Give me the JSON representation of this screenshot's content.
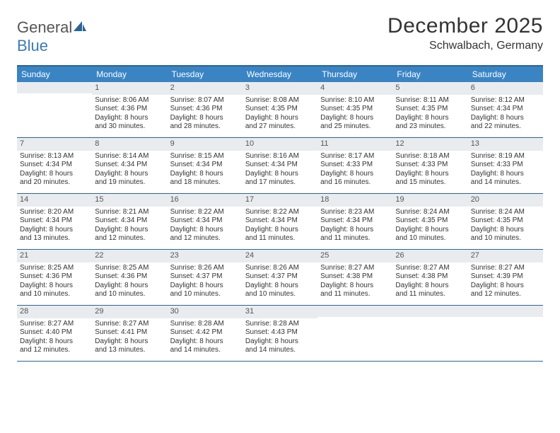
{
  "logo": {
    "general": "General",
    "blue": "Blue"
  },
  "title": "December 2025",
  "location": "Schwalbach, Germany",
  "dayHeaders": [
    "Sunday",
    "Monday",
    "Tuesday",
    "Wednesday",
    "Thursday",
    "Friday",
    "Saturday"
  ],
  "colors": {
    "headerBar": "#3a84c4",
    "headerText": "#ffffff",
    "ruleLine": "#2a6496",
    "dayNumBg": "#e9ecef",
    "bodyText": "#333333",
    "logoBlue": "#3a7ab8"
  },
  "weeks": [
    [
      {
        "n": "",
        "lines": []
      },
      {
        "n": "1",
        "lines": [
          "Sunrise: 8:06 AM",
          "Sunset: 4:36 PM",
          "Daylight: 8 hours",
          "and 30 minutes."
        ]
      },
      {
        "n": "2",
        "lines": [
          "Sunrise: 8:07 AM",
          "Sunset: 4:36 PM",
          "Daylight: 8 hours",
          "and 28 minutes."
        ]
      },
      {
        "n": "3",
        "lines": [
          "Sunrise: 8:08 AM",
          "Sunset: 4:35 PM",
          "Daylight: 8 hours",
          "and 27 minutes."
        ]
      },
      {
        "n": "4",
        "lines": [
          "Sunrise: 8:10 AM",
          "Sunset: 4:35 PM",
          "Daylight: 8 hours",
          "and 25 minutes."
        ]
      },
      {
        "n": "5",
        "lines": [
          "Sunrise: 8:11 AM",
          "Sunset: 4:35 PM",
          "Daylight: 8 hours",
          "and 23 minutes."
        ]
      },
      {
        "n": "6",
        "lines": [
          "Sunrise: 8:12 AM",
          "Sunset: 4:34 PM",
          "Daylight: 8 hours",
          "and 22 minutes."
        ]
      }
    ],
    [
      {
        "n": "7",
        "lines": [
          "Sunrise: 8:13 AM",
          "Sunset: 4:34 PM",
          "Daylight: 8 hours",
          "and 20 minutes."
        ]
      },
      {
        "n": "8",
        "lines": [
          "Sunrise: 8:14 AM",
          "Sunset: 4:34 PM",
          "Daylight: 8 hours",
          "and 19 minutes."
        ]
      },
      {
        "n": "9",
        "lines": [
          "Sunrise: 8:15 AM",
          "Sunset: 4:34 PM",
          "Daylight: 8 hours",
          "and 18 minutes."
        ]
      },
      {
        "n": "10",
        "lines": [
          "Sunrise: 8:16 AM",
          "Sunset: 4:34 PM",
          "Daylight: 8 hours",
          "and 17 minutes."
        ]
      },
      {
        "n": "11",
        "lines": [
          "Sunrise: 8:17 AM",
          "Sunset: 4:33 PM",
          "Daylight: 8 hours",
          "and 16 minutes."
        ]
      },
      {
        "n": "12",
        "lines": [
          "Sunrise: 8:18 AM",
          "Sunset: 4:33 PM",
          "Daylight: 8 hours",
          "and 15 minutes."
        ]
      },
      {
        "n": "13",
        "lines": [
          "Sunrise: 8:19 AM",
          "Sunset: 4:33 PM",
          "Daylight: 8 hours",
          "and 14 minutes."
        ]
      }
    ],
    [
      {
        "n": "14",
        "lines": [
          "Sunrise: 8:20 AM",
          "Sunset: 4:34 PM",
          "Daylight: 8 hours",
          "and 13 minutes."
        ]
      },
      {
        "n": "15",
        "lines": [
          "Sunrise: 8:21 AM",
          "Sunset: 4:34 PM",
          "Daylight: 8 hours",
          "and 12 minutes."
        ]
      },
      {
        "n": "16",
        "lines": [
          "Sunrise: 8:22 AM",
          "Sunset: 4:34 PM",
          "Daylight: 8 hours",
          "and 12 minutes."
        ]
      },
      {
        "n": "17",
        "lines": [
          "Sunrise: 8:22 AM",
          "Sunset: 4:34 PM",
          "Daylight: 8 hours",
          "and 11 minutes."
        ]
      },
      {
        "n": "18",
        "lines": [
          "Sunrise: 8:23 AM",
          "Sunset: 4:34 PM",
          "Daylight: 8 hours",
          "and 11 minutes."
        ]
      },
      {
        "n": "19",
        "lines": [
          "Sunrise: 8:24 AM",
          "Sunset: 4:35 PM",
          "Daylight: 8 hours",
          "and 10 minutes."
        ]
      },
      {
        "n": "20",
        "lines": [
          "Sunrise: 8:24 AM",
          "Sunset: 4:35 PM",
          "Daylight: 8 hours",
          "and 10 minutes."
        ]
      }
    ],
    [
      {
        "n": "21",
        "lines": [
          "Sunrise: 8:25 AM",
          "Sunset: 4:36 PM",
          "Daylight: 8 hours",
          "and 10 minutes."
        ]
      },
      {
        "n": "22",
        "lines": [
          "Sunrise: 8:25 AM",
          "Sunset: 4:36 PM",
          "Daylight: 8 hours",
          "and 10 minutes."
        ]
      },
      {
        "n": "23",
        "lines": [
          "Sunrise: 8:26 AM",
          "Sunset: 4:37 PM",
          "Daylight: 8 hours",
          "and 10 minutes."
        ]
      },
      {
        "n": "24",
        "lines": [
          "Sunrise: 8:26 AM",
          "Sunset: 4:37 PM",
          "Daylight: 8 hours",
          "and 10 minutes."
        ]
      },
      {
        "n": "25",
        "lines": [
          "Sunrise: 8:27 AM",
          "Sunset: 4:38 PM",
          "Daylight: 8 hours",
          "and 11 minutes."
        ]
      },
      {
        "n": "26",
        "lines": [
          "Sunrise: 8:27 AM",
          "Sunset: 4:38 PM",
          "Daylight: 8 hours",
          "and 11 minutes."
        ]
      },
      {
        "n": "27",
        "lines": [
          "Sunrise: 8:27 AM",
          "Sunset: 4:39 PM",
          "Daylight: 8 hours",
          "and 12 minutes."
        ]
      }
    ],
    [
      {
        "n": "28",
        "lines": [
          "Sunrise: 8:27 AM",
          "Sunset: 4:40 PM",
          "Daylight: 8 hours",
          "and 12 minutes."
        ]
      },
      {
        "n": "29",
        "lines": [
          "Sunrise: 8:27 AM",
          "Sunset: 4:41 PM",
          "Daylight: 8 hours",
          "and 13 minutes."
        ]
      },
      {
        "n": "30",
        "lines": [
          "Sunrise: 8:28 AM",
          "Sunset: 4:42 PM",
          "Daylight: 8 hours",
          "and 14 minutes."
        ]
      },
      {
        "n": "31",
        "lines": [
          "Sunrise: 8:28 AM",
          "Sunset: 4:43 PM",
          "Daylight: 8 hours",
          "and 14 minutes."
        ]
      },
      {
        "n": "",
        "lines": []
      },
      {
        "n": "",
        "lines": []
      },
      {
        "n": "",
        "lines": []
      }
    ]
  ]
}
